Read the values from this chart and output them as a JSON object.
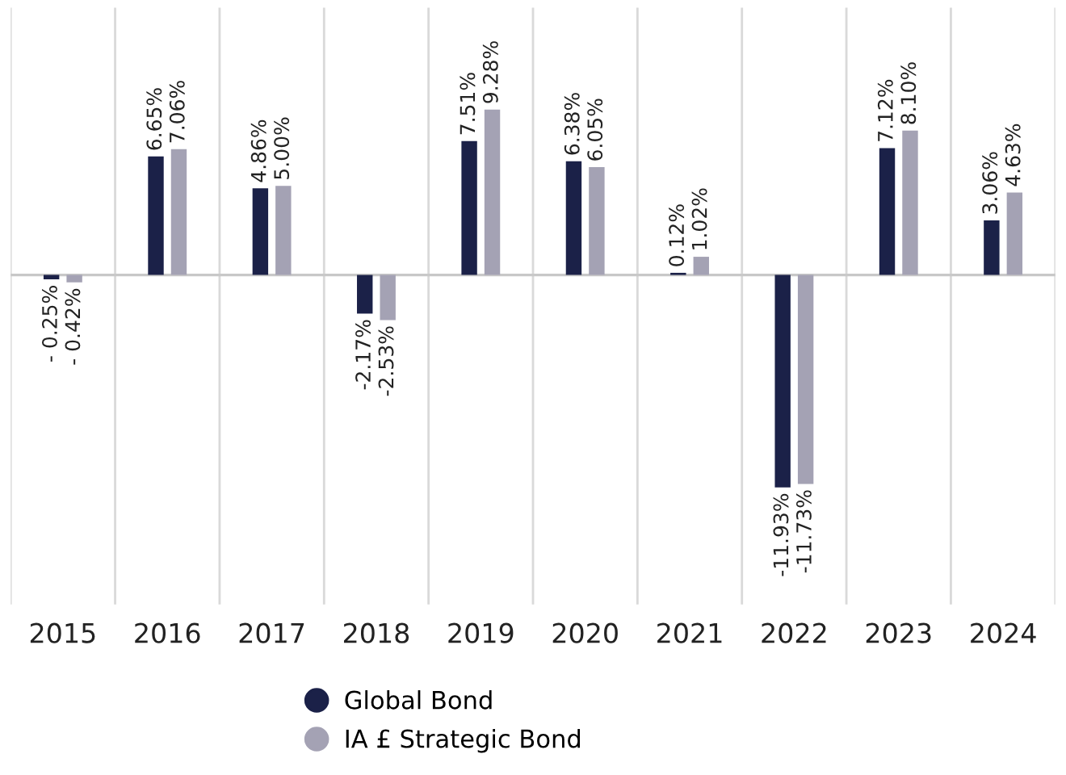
{
  "chart_data": {
    "type": "bar",
    "categories": [
      "2015",
      "2016",
      "2017",
      "2018",
      "2019",
      "2020",
      "2021",
      "2022",
      "2023",
      "2024"
    ],
    "series": [
      {
        "name": "Global Bond",
        "color": "#1b2148",
        "values": [
          -0.25,
          6.65,
          4.86,
          -2.17,
          7.51,
          6.38,
          0.12,
          -11.93,
          7.12,
          3.06
        ],
        "value_labels": [
          "- 0.25%",
          "6.65%",
          "4.86%",
          "-2.17%",
          "7.51%",
          "6.38%",
          "0.12%",
          "-11.93%",
          "7.12%",
          "3.06%"
        ]
      },
      {
        "name": "IA £ Strategic Bond",
        "color": "#a4a2b4",
        "values": [
          -0.42,
          7.06,
          5.0,
          -2.53,
          9.28,
          6.05,
          1.02,
          -11.73,
          8.1,
          4.63
        ],
        "value_labels": [
          "- 0.42%",
          "7.06%",
          "5.00%",
          "-2.53%",
          "9.28%",
          "6.05%",
          "1.02%",
          "-11.73%",
          "8.10%",
          "4.63%"
        ]
      }
    ],
    "grid": "x",
    "legend": "bottom",
    "marker": "circle"
  }
}
